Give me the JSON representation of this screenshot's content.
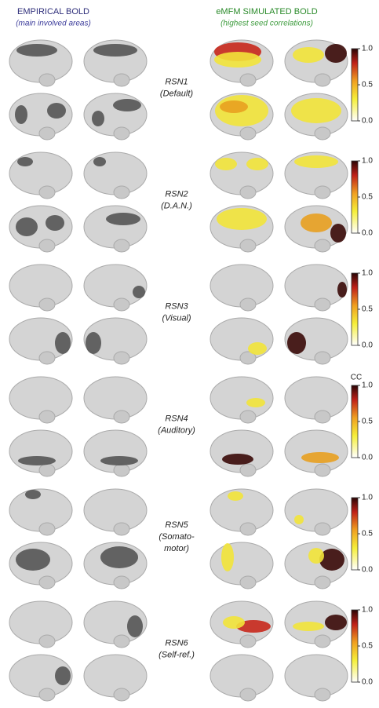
{
  "header": {
    "left": {
      "title": "EMPIRICAL BOLD",
      "subtitle": "(main involved areas)"
    },
    "right": {
      "title": "eMFM SIMULATED BOLD",
      "subtitle": "(highest seed correlations)"
    }
  },
  "rows": [
    {
      "label": [
        "RSN1",
        "(Default)"
      ]
    },
    {
      "label": [
        "RSN2",
        "(D.A.N.)"
      ]
    },
    {
      "label": [
        "RSN3",
        "(Visual)"
      ]
    },
    {
      "label": [
        "RSN4",
        "(Auditory)"
      ]
    },
    {
      "label": [
        "RSN5",
        "(Somato-",
        "motor)"
      ]
    },
    {
      "label": [
        "RSN6",
        "(Self-ref.)"
      ]
    }
  ],
  "colorbar": {
    "title": "CC",
    "ticks": [
      {
        "value": 0,
        "label": "0.0"
      },
      {
        "value": 0.5,
        "label": "0.5"
      },
      {
        "value": 1,
        "label": "1.0"
      }
    ],
    "range": [
      0,
      1
    ]
  }
}
